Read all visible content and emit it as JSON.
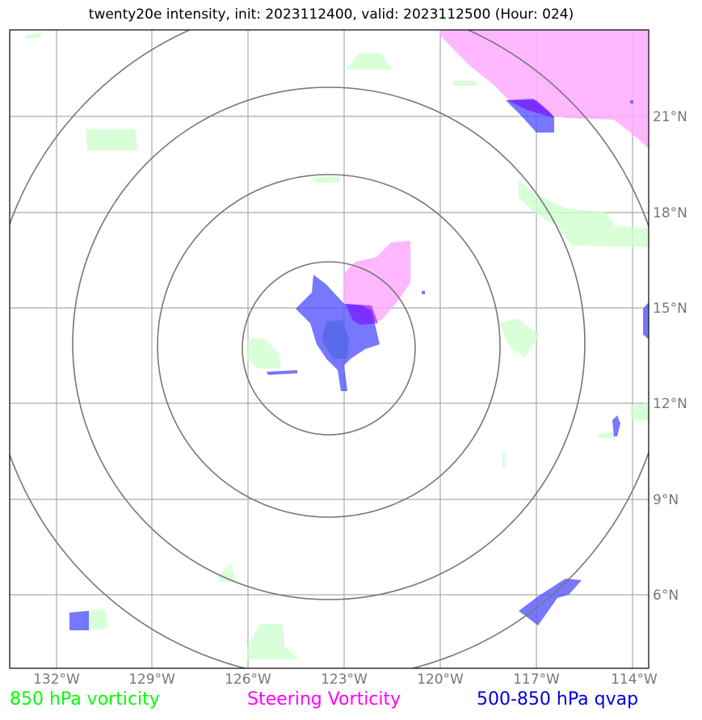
{
  "title": "twenty20e intensity, init: 2023112400, valid: 2023112500 (Hour: 024)",
  "map": {
    "lon_ticks": [
      "132°W",
      "129°W",
      "126°W",
      "123°W",
      "120°W",
      "117°W",
      "114°W"
    ],
    "lat_ticks": [
      "21°N",
      "18°N",
      "15°N",
      "12°N",
      "9°N",
      "6°N"
    ],
    "layers": {
      "vorticity_850": {
        "color": "#ccffcc"
      },
      "steering_vorticity": {
        "color": "#ffaaff"
      },
      "qvap_500_850": {
        "color": "#5555ff"
      }
    }
  },
  "legend": {
    "vorticity_850": "850 hPa vorticity",
    "steering_vorticity": "Steering Vorticity",
    "qvap_500_850": "500-850 hPa qvap"
  },
  "colors": {
    "vorticity_850": "#00ff00",
    "steering_vorticity": "#ff00ff",
    "qvap_500_850": "#0000dd",
    "grid": "#aaaaaa",
    "range_rings": "#777777"
  }
}
